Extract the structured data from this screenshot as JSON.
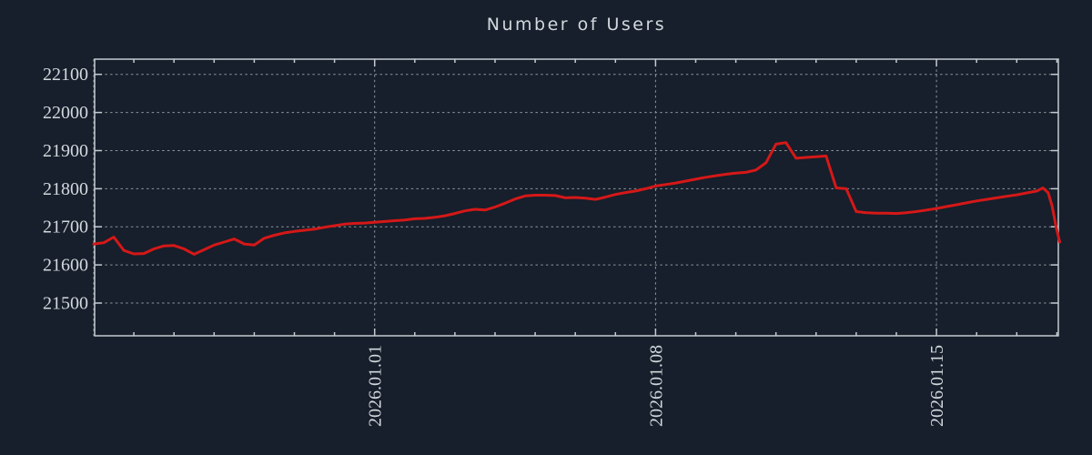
{
  "title": "Number of Users",
  "colors": {
    "background": "#161f2b",
    "line": "#d51818",
    "text": "#d3d8dd",
    "frame": "#c6cbd1",
    "grid": "#8f969e"
  },
  "chart_data": {
    "type": "line",
    "title": "Number of Users",
    "series_name": "Number of Users",
    "x_unit": "days_since_2025.12.25",
    "x_range_days": [
      0,
      24.1
    ],
    "x_major_ticks": [
      {
        "t": 0,
        "label": ""
      },
      {
        "t": 7,
        "label": "2026.01.01"
      },
      {
        "t": 14,
        "label": "2026.01.08"
      },
      {
        "t": 21,
        "label": "2026.01.15"
      }
    ],
    "x_minor_tick_every_days": 1,
    "y_ticks": [
      21500,
      21600,
      21700,
      21800,
      21900,
      22000,
      22100
    ],
    "y_range": [
      21414,
      22140
    ],
    "grid": "dotted",
    "legend": "none",
    "points": [
      [
        0.0,
        21655
      ],
      [
        0.25,
        21658
      ],
      [
        0.5,
        21673
      ],
      [
        0.75,
        21638
      ],
      [
        1.0,
        21629
      ],
      [
        1.25,
        21630
      ],
      [
        1.5,
        21642
      ],
      [
        1.75,
        21650
      ],
      [
        2.0,
        21651
      ],
      [
        2.25,
        21642
      ],
      [
        2.5,
        21628
      ],
      [
        2.75,
        21640
      ],
      [
        3.0,
        21652
      ],
      [
        3.25,
        21660
      ],
      [
        3.5,
        21668
      ],
      [
        3.75,
        21655
      ],
      [
        4.0,
        21652
      ],
      [
        4.25,
        21670
      ],
      [
        4.5,
        21678
      ],
      [
        4.75,
        21684
      ],
      [
        5.0,
        21688
      ],
      [
        5.25,
        21691
      ],
      [
        5.5,
        21694
      ],
      [
        5.75,
        21699
      ],
      [
        6.0,
        21703
      ],
      [
        6.25,
        21707
      ],
      [
        6.5,
        21709
      ],
      [
        6.75,
        21710
      ],
      [
        7.0,
        21712
      ],
      [
        7.25,
        21714
      ],
      [
        7.5,
        21716
      ],
      [
        7.75,
        21718
      ],
      [
        8.0,
        21721
      ],
      [
        8.25,
        21722
      ],
      [
        8.5,
        21725
      ],
      [
        8.75,
        21729
      ],
      [
        9.0,
        21735
      ],
      [
        9.25,
        21742
      ],
      [
        9.5,
        21746
      ],
      [
        9.75,
        21744
      ],
      [
        10.0,
        21752
      ],
      [
        10.25,
        21762
      ],
      [
        10.5,
        21773
      ],
      [
        10.75,
        21781
      ],
      [
        11.0,
        21783
      ],
      [
        11.25,
        21783
      ],
      [
        11.5,
        21782
      ],
      [
        11.75,
        21776
      ],
      [
        12.0,
        21777
      ],
      [
        12.25,
        21775
      ],
      [
        12.5,
        21772
      ],
      [
        12.75,
        21778
      ],
      [
        13.0,
        21785
      ],
      [
        13.25,
        21790
      ],
      [
        13.5,
        21794
      ],
      [
        13.75,
        21800
      ],
      [
        14.0,
        21807
      ],
      [
        14.25,
        21811
      ],
      [
        14.5,
        21815
      ],
      [
        14.75,
        21820
      ],
      [
        15.0,
        21825
      ],
      [
        15.25,
        21830
      ],
      [
        15.5,
        21834
      ],
      [
        15.75,
        21838
      ],
      [
        16.0,
        21841
      ],
      [
        16.25,
        21843
      ],
      [
        16.5,
        21849
      ],
      [
        16.75,
        21868
      ],
      [
        17.0,
        21917
      ],
      [
        17.25,
        21921
      ],
      [
        17.5,
        21880
      ],
      [
        17.75,
        21882
      ],
      [
        18.0,
        21884
      ],
      [
        18.25,
        21886
      ],
      [
        18.5,
        21802
      ],
      [
        18.75,
        21800
      ],
      [
        19.0,
        21740
      ],
      [
        19.25,
        21737
      ],
      [
        19.5,
        21736
      ],
      [
        19.75,
        21736
      ],
      [
        20.0,
        21735
      ],
      [
        20.25,
        21737
      ],
      [
        20.5,
        21740
      ],
      [
        20.75,
        21744
      ],
      [
        21.0,
        21748
      ],
      [
        21.25,
        21753
      ],
      [
        21.5,
        21758
      ],
      [
        21.75,
        21763
      ],
      [
        22.0,
        21768
      ],
      [
        22.25,
        21772
      ],
      [
        22.5,
        21776
      ],
      [
        22.75,
        21780
      ],
      [
        23.0,
        21784
      ],
      [
        23.25,
        21789
      ],
      [
        23.5,
        21794
      ],
      [
        23.65,
        21802
      ],
      [
        23.78,
        21790
      ],
      [
        23.88,
        21755
      ],
      [
        23.98,
        21700
      ],
      [
        24.07,
        21660
      ]
    ]
  }
}
